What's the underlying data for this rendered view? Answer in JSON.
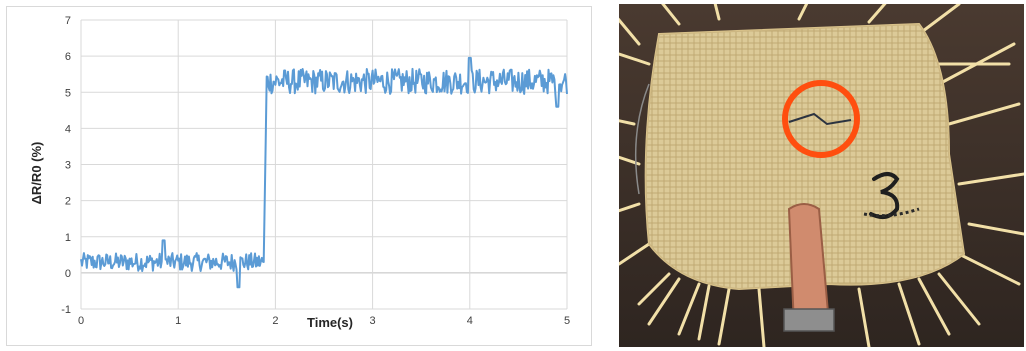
{
  "chart_data": {
    "type": "line",
    "title": "",
    "xlabel": "Time(s)",
    "ylabel": "ΔR/R0 (%)",
    "xlim": [
      0,
      5
    ],
    "ylim": [
      -1,
      7
    ],
    "xticks": [
      "0",
      "1",
      "2",
      "3",
      "4",
      "5"
    ],
    "yticks": [
      "-1",
      "0",
      "1",
      "2",
      "3",
      "4",
      "5",
      "6",
      "7"
    ],
    "grid": true,
    "legend": "none",
    "series": [
      {
        "color": "#5b9bd5",
        "baseline_before_step": 0.3,
        "noise_before_step": 0.5,
        "step_time_s": 1.88,
        "level_after_step": 5.3,
        "noise_after_step": 0.7,
        "x": [
          0,
          0.25,
          0.5,
          0.75,
          0.85,
          1.0,
          1.25,
          1.5,
          1.62,
          1.75,
          1.85,
          1.88,
          1.9,
          2.0,
          2.25,
          2.5,
          2.75,
          3.0,
          3.25,
          3.5,
          3.75,
          4.0,
          4.25,
          4.5,
          4.75,
          5.0
        ],
        "y": [
          0.3,
          0.4,
          0.2,
          0.35,
          0.9,
          0.3,
          0.35,
          0.2,
          -0.4,
          0.35,
          0.5,
          0.5,
          5.3,
          5.4,
          5.3,
          5.3,
          5.3,
          5.3,
          5.2,
          5.3,
          5.4,
          5.5,
          5.4,
          5.3,
          5.3,
          5.2
        ]
      }
    ]
  },
  "photo": {
    "subject": "woven-fabric-sample",
    "highlight_color": "#ff4e0f"
  }
}
